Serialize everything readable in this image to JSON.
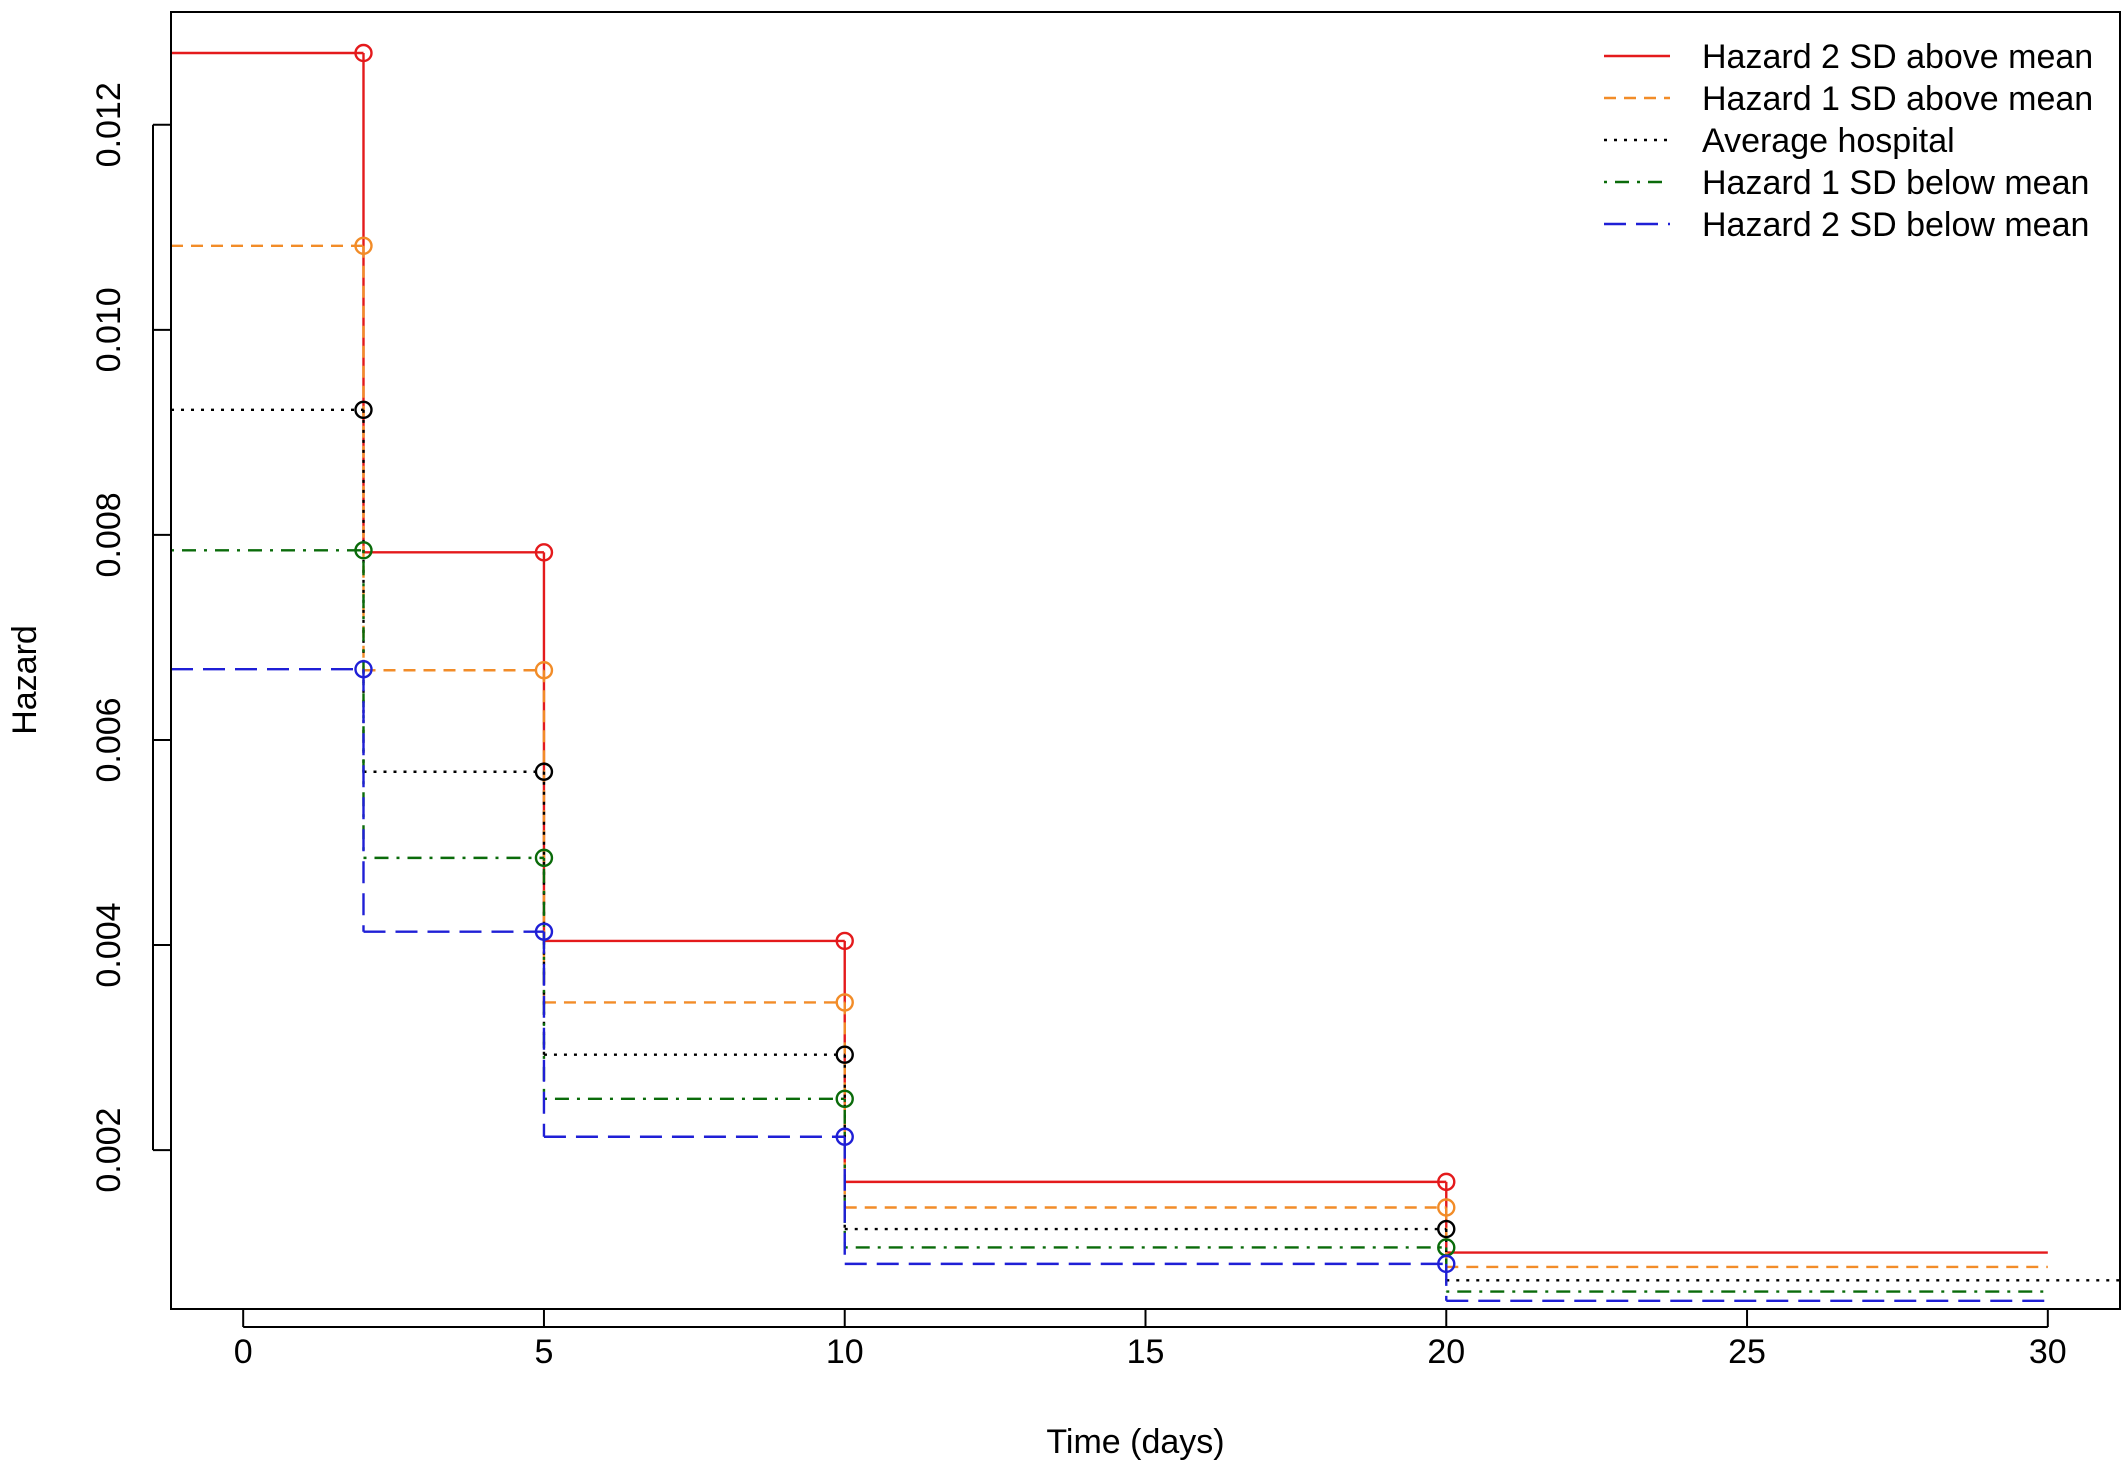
{
  "chart_data": {
    "type": "line",
    "step": "pre",
    "title": "",
    "xlabel": "Time (days)",
    "ylabel": "Hazard",
    "xlim": [
      -1.2,
      31.2
    ],
    "ylim": [
      0.00045,
      0.0131
    ],
    "x_ticks": [
      0,
      5,
      10,
      15,
      20,
      25,
      30
    ],
    "y_ticks": [
      0.002,
      0.004,
      0.006,
      0.008,
      0.01,
      0.012
    ],
    "y_tick_labels": [
      "0.002",
      "0.004",
      "0.006",
      "0.008",
      "0.010",
      "0.012"
    ],
    "grid": false,
    "legend_position": "top-right",
    "interval_starts": [
      -1.2,
      2,
      5,
      10,
      20
    ],
    "breakpoints": [
      2,
      5,
      10,
      20
    ],
    "series": [
      {
        "name": "Hazard 2 SD above mean",
        "color": "#e41a1c",
        "dash": "solid",
        "values": [
          0.0127,
          0.00783,
          0.00404,
          0.00169,
          0.001
        ],
        "last_end": 30
      },
      {
        "name": "Hazard 1 SD above mean",
        "color": "#f28c28",
        "dash": "dashed",
        "values": [
          0.01082,
          0.00668,
          0.00344,
          0.00144,
          0.00086
        ],
        "last_end": 30
      },
      {
        "name": "Average hospital",
        "color": "#000000",
        "dash": "dotted",
        "values": [
          0.00922,
          0.00569,
          0.00293,
          0.00123,
          0.00073
        ],
        "last_end": 31.2
      },
      {
        "name": "Hazard 1 SD below mean",
        "color": "#0a6b0a",
        "dash": "dotdash",
        "values": [
          0.00785,
          0.00485,
          0.0025,
          0.00105,
          0.00062
        ],
        "last_end": 30
      },
      {
        "name": "Hazard 2 SD below mean",
        "color": "#1f1fd6",
        "dash": "longdash",
        "values": [
          0.00669,
          0.00413,
          0.00213,
          0.00089,
          0.00053
        ],
        "last_end": 30
      }
    ]
  }
}
